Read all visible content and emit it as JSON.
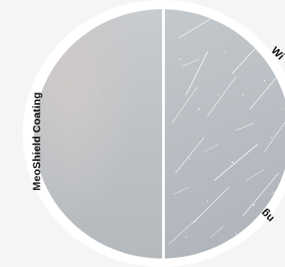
{
  "labels": {
    "left": "MeoShield Coating",
    "top_right_fragment": "Wi",
    "bottom_right_fragment": "ng"
  },
  "colors": {
    "background": "#f4f5f6",
    "ring": "#ffffff",
    "coated_surface": "#bcc1c5",
    "scratched_surface": "#b6bcc1",
    "label_text": "#111111"
  }
}
